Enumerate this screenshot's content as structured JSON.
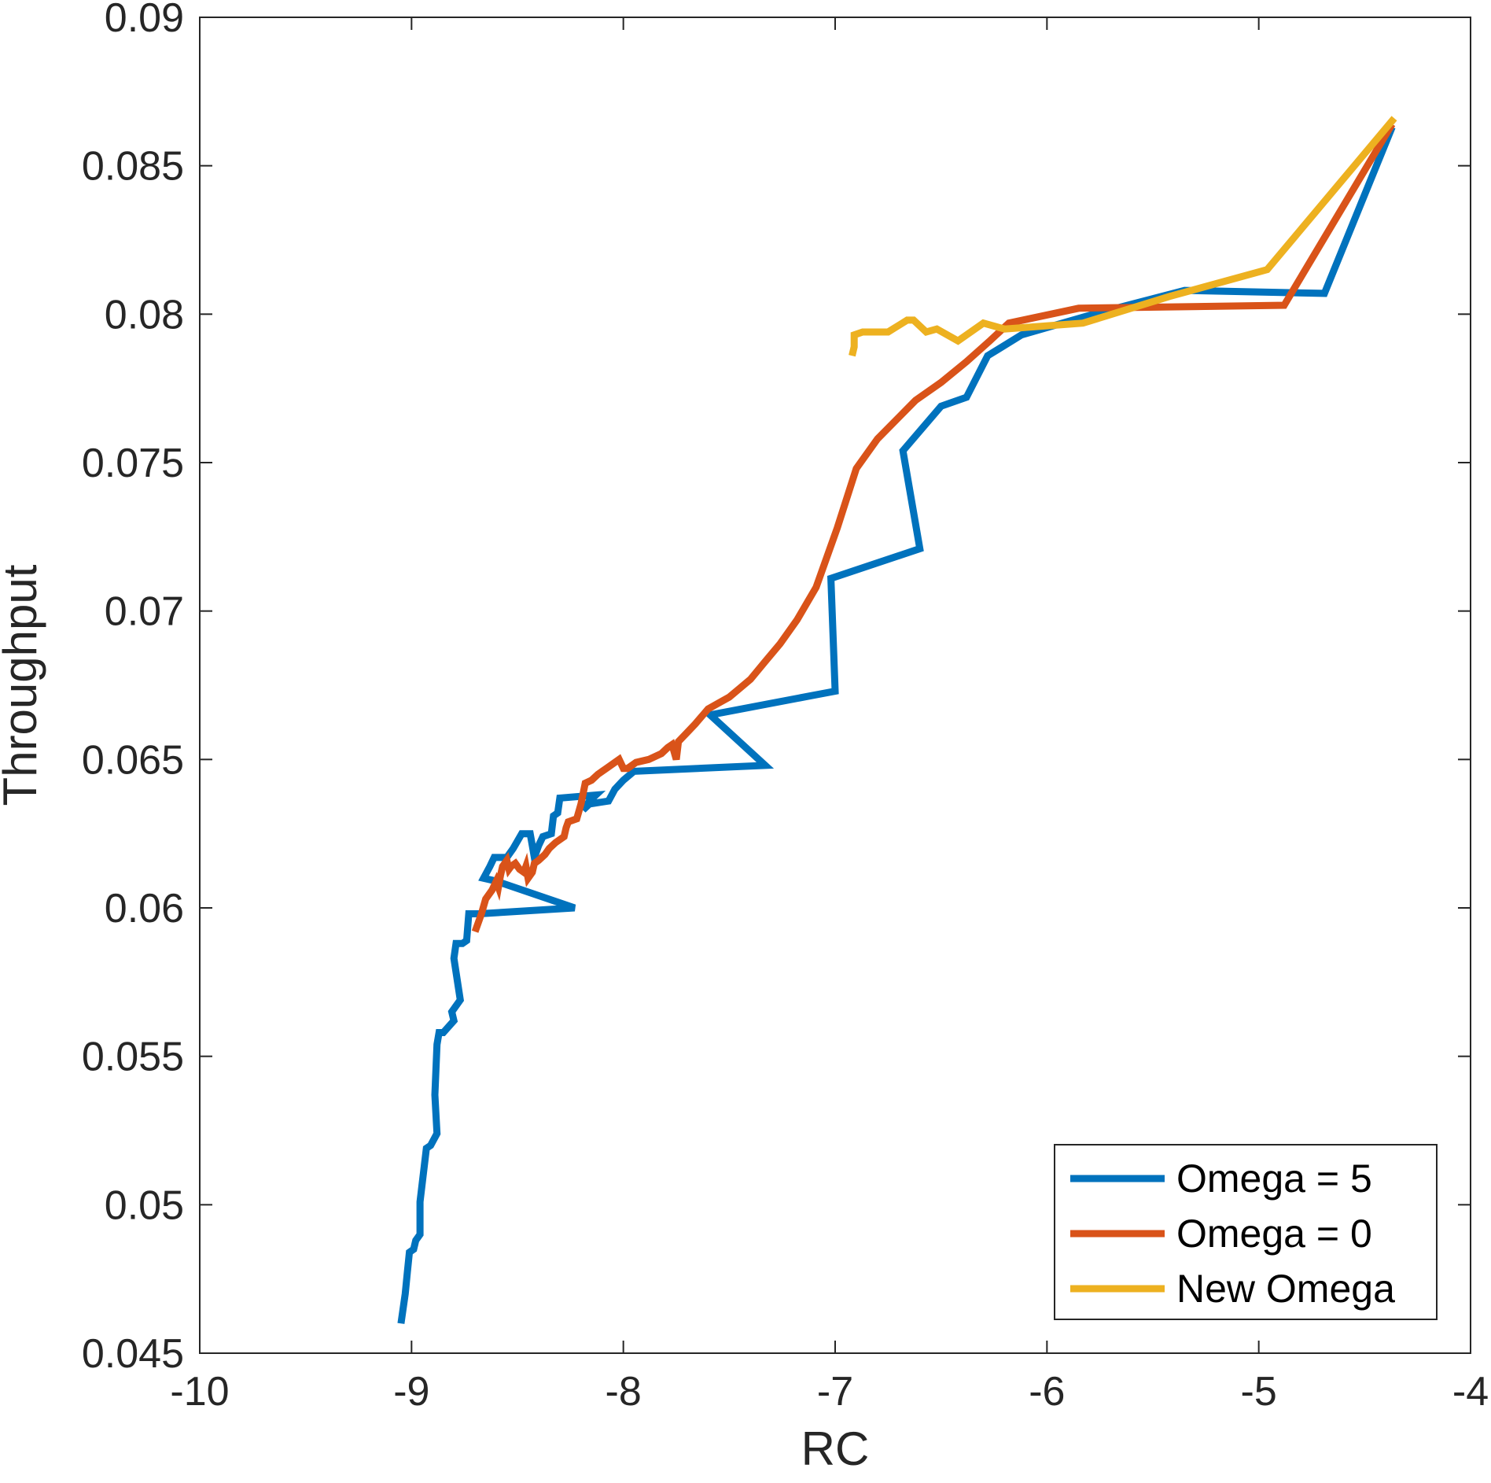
{
  "chart_data": {
    "type": "line",
    "xlabel": "RC",
    "ylabel": "Throughput",
    "xlim": [
      -10,
      -4
    ],
    "ylim": [
      0.045,
      0.09
    ],
    "xticks": [
      -10,
      -9,
      -8,
      -7,
      -6,
      -5,
      -4
    ],
    "xtick_labels": [
      "-10",
      "-9",
      "-8",
      "-7",
      "-6",
      "-5",
      "-4"
    ],
    "yticks": [
      0.045,
      0.05,
      0.055,
      0.06,
      0.065,
      0.07,
      0.075,
      0.08,
      0.085,
      0.09
    ],
    "ytick_labels": [
      "0.045",
      "0.05",
      "0.055",
      "0.06",
      "0.065",
      "0.07",
      "0.075",
      "0.08",
      "0.085",
      "0.09"
    ],
    "grid": false,
    "box": true,
    "legend_position": "bottom-right",
    "series": [
      {
        "name": "Omega = 5",
        "color": "#0072BD",
        "points": [
          [
            -9.05,
            0.046
          ],
          [
            -9.03,
            0.047
          ],
          [
            -9.02,
            0.0477
          ],
          [
            -9.01,
            0.0484
          ],
          [
            -8.99,
            0.0485
          ],
          [
            -8.98,
            0.0488
          ],
          [
            -8.96,
            0.049
          ],
          [
            -8.96,
            0.0501
          ],
          [
            -8.94,
            0.0513
          ],
          [
            -8.93,
            0.0519
          ],
          [
            -8.91,
            0.052
          ],
          [
            -8.88,
            0.0524
          ],
          [
            -8.89,
            0.0537
          ],
          [
            -8.88,
            0.0554
          ],
          [
            -8.87,
            0.0558
          ],
          [
            -8.85,
            0.0558
          ],
          [
            -8.8,
            0.0562
          ],
          [
            -8.81,
            0.0565
          ],
          [
            -8.77,
            0.0569
          ],
          [
            -8.8,
            0.0583
          ],
          [
            -8.79,
            0.0588
          ],
          [
            -8.76,
            0.0588
          ],
          [
            -8.74,
            0.0589
          ],
          [
            -8.73,
            0.0598
          ],
          [
            -8.68,
            0.0598
          ],
          [
            -8.23,
            0.06
          ],
          [
            -8.6,
            0.0609
          ],
          [
            -8.66,
            0.061
          ],
          [
            -8.63,
            0.0614
          ],
          [
            -8.61,
            0.0617
          ],
          [
            -8.55,
            0.0617
          ],
          [
            -8.52,
            0.062
          ],
          [
            -8.48,
            0.0625
          ],
          [
            -8.44,
            0.0625
          ],
          [
            -8.43,
            0.0621
          ],
          [
            -8.42,
            0.0617
          ],
          [
            -8.4,
            0.0621
          ],
          [
            -8.38,
            0.0624
          ],
          [
            -8.34,
            0.0625
          ],
          [
            -8.33,
            0.0631
          ],
          [
            -8.31,
            0.0632
          ],
          [
            -8.3,
            0.0637
          ],
          [
            -8.13,
            0.0638
          ],
          [
            -8.16,
            0.0636
          ],
          [
            -8.19,
            0.0633
          ],
          [
            -8.16,
            0.0635
          ],
          [
            -8.07,
            0.0636
          ],
          [
            -8.04,
            0.064
          ],
          [
            -8.0,
            0.0643
          ],
          [
            -7.95,
            0.0646
          ],
          [
            -7.33,
            0.0648
          ],
          [
            -7.59,
            0.0665
          ],
          [
            -7.0,
            0.0673
          ],
          [
            -7.02,
            0.0711
          ],
          [
            -6.6,
            0.0721
          ],
          [
            -6.68,
            0.0754
          ],
          [
            -6.5,
            0.0769
          ],
          [
            -6.38,
            0.0772
          ],
          [
            -6.28,
            0.0786
          ],
          [
            -6.12,
            0.0793
          ],
          [
            -5.78,
            0.08
          ],
          [
            -5.35,
            0.0808
          ],
          [
            -4.69,
            0.0807
          ],
          [
            -4.37,
            0.0863
          ]
        ]
      },
      {
        "name": "Omega = 0",
        "color": "#D95319",
        "points": [
          [
            -8.7,
            0.0592
          ],
          [
            -8.67,
            0.0598
          ],
          [
            -8.65,
            0.0603
          ],
          [
            -8.62,
            0.0606
          ],
          [
            -8.6,
            0.0609
          ],
          [
            -8.59,
            0.0607
          ],
          [
            -8.58,
            0.0611
          ],
          [
            -8.57,
            0.0614
          ],
          [
            -8.55,
            0.0616
          ],
          [
            -8.54,
            0.0613
          ],
          [
            -8.53,
            0.0614
          ],
          [
            -8.51,
            0.0615
          ],
          [
            -8.49,
            0.0613
          ],
          [
            -8.47,
            0.0612
          ],
          [
            -8.46,
            0.0614
          ],
          [
            -8.45,
            0.061
          ],
          [
            -8.43,
            0.0612
          ],
          [
            -8.42,
            0.0615
          ],
          [
            -8.4,
            0.0616
          ],
          [
            -8.37,
            0.0618
          ],
          [
            -8.35,
            0.062
          ],
          [
            -8.32,
            0.0622
          ],
          [
            -8.28,
            0.0624
          ],
          [
            -8.27,
            0.0627
          ],
          [
            -8.26,
            0.0629
          ],
          [
            -8.22,
            0.063
          ],
          [
            -8.2,
            0.0635
          ],
          [
            -8.18,
            0.0642
          ],
          [
            -8.15,
            0.0643
          ],
          [
            -8.12,
            0.0645
          ],
          [
            -8.08,
            0.0647
          ],
          [
            -8.04,
            0.0649
          ],
          [
            -8.02,
            0.065
          ],
          [
            -8.0,
            0.0647
          ],
          [
            -7.98,
            0.0647
          ],
          [
            -7.94,
            0.0649
          ],
          [
            -7.88,
            0.065
          ],
          [
            -7.82,
            0.0652
          ],
          [
            -7.79,
            0.0654
          ],
          [
            -7.77,
            0.0655
          ],
          [
            -7.75,
            0.065
          ],
          [
            -7.74,
            0.0656
          ],
          [
            -7.7,
            0.0659
          ],
          [
            -7.66,
            0.0662
          ],
          [
            -7.6,
            0.0667
          ],
          [
            -7.55,
            0.0669
          ],
          [
            -7.5,
            0.0671
          ],
          [
            -7.45,
            0.0674
          ],
          [
            -7.4,
            0.0677
          ],
          [
            -7.33,
            0.0683
          ],
          [
            -7.26,
            0.0689
          ],
          [
            -7.18,
            0.0697
          ],
          [
            -7.09,
            0.0708
          ],
          [
            -6.99,
            0.0728
          ],
          [
            -6.9,
            0.0748
          ],
          [
            -6.8,
            0.0758
          ],
          [
            -6.62,
            0.0771
          ],
          [
            -6.5,
            0.0777
          ],
          [
            -6.38,
            0.0784
          ],
          [
            -6.27,
            0.0791
          ],
          [
            -6.18,
            0.0797
          ],
          [
            -5.85,
            0.0802
          ],
          [
            -4.88,
            0.0803
          ],
          [
            -4.37,
            0.0864
          ]
        ]
      },
      {
        "name": "New Omega",
        "color": "#EDB120",
        "points": [
          [
            -6.92,
            0.0786
          ],
          [
            -6.91,
            0.0789
          ],
          [
            -6.91,
            0.0793
          ],
          [
            -6.87,
            0.0794
          ],
          [
            -6.75,
            0.0794
          ],
          [
            -6.66,
            0.0798
          ],
          [
            -6.63,
            0.0798
          ],
          [
            -6.6,
            0.0796
          ],
          [
            -6.57,
            0.0794
          ],
          [
            -6.52,
            0.0795
          ],
          [
            -6.42,
            0.0791
          ],
          [
            -6.3,
            0.0797
          ],
          [
            -6.2,
            0.0795
          ],
          [
            -5.83,
            0.0797
          ],
          [
            -5.42,
            0.0806
          ],
          [
            -4.96,
            0.0815
          ],
          [
            -4.36,
            0.0866
          ]
        ]
      }
    ]
  }
}
